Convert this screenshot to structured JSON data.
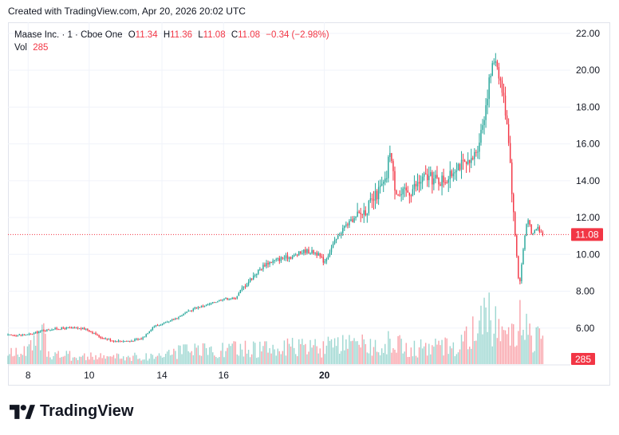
{
  "caption": "Created with TradingView.com, Apr 20, 2026 20:02 UTC",
  "legend": {
    "symbol": "Maase Inc. · 1 · Cboe One",
    "open_label": "O",
    "open": "11.34",
    "high_label": "H",
    "high": "11.36",
    "low_label": "L",
    "low": "11.08",
    "close_label": "C",
    "close": "11.08",
    "change": "−0.34 (−2.98%)",
    "vol_label": "Vol",
    "vol": "285"
  },
  "brand": {
    "name": "TradingView",
    "logo_icon": "tradingview-logo-icon"
  },
  "colors": {
    "up": "#26a69a",
    "down": "#f23645",
    "grid": "#f0f3fa",
    "text": "#131722"
  },
  "chart_data": {
    "type": "candlestick",
    "x_ticks": [
      {
        "label": "8",
        "bold": false,
        "pos": 0.036
      },
      {
        "label": "10",
        "bold": false,
        "pos": 0.145
      },
      {
        "label": "14",
        "bold": false,
        "pos": 0.275
      },
      {
        "label": "16",
        "bold": false,
        "pos": 0.385
      },
      {
        "label": "20",
        "bold": true,
        "pos": 0.565
      }
    ],
    "y_ticks": [
      "22.00",
      "20.00",
      "18.00",
      "16.00",
      "14.00",
      "12.00",
      "10.00",
      "8.00",
      "6.00"
    ],
    "ylim": [
      4.0,
      22.6
    ],
    "last_price": 11.08,
    "last_price_label": "11.08",
    "last_volume_label": "285",
    "grid": true,
    "price_path": [
      [
        0.0,
        5.6
      ],
      [
        0.04,
        5.65
      ],
      [
        0.06,
        5.85
      ],
      [
        0.08,
        5.95
      ],
      [
        0.11,
        6.0
      ],
      [
        0.14,
        5.95
      ],
      [
        0.165,
        5.5
      ],
      [
        0.19,
        5.3
      ],
      [
        0.22,
        5.3
      ],
      [
        0.24,
        5.45
      ],
      [
        0.26,
        6.1
      ],
      [
        0.285,
        6.3
      ],
      [
        0.31,
        6.7
      ],
      [
        0.335,
        7.1
      ],
      [
        0.36,
        7.3
      ],
      [
        0.385,
        7.6
      ],
      [
        0.405,
        7.6
      ],
      [
        0.42,
        8.2
      ],
      [
        0.44,
        8.9
      ],
      [
        0.46,
        9.5
      ],
      [
        0.49,
        9.8
      ],
      [
        0.51,
        9.9
      ],
      [
        0.53,
        10.2
      ],
      [
        0.55,
        10.1
      ],
      [
        0.565,
        9.6
      ],
      [
        0.58,
        10.5
      ],
      [
        0.6,
        11.5
      ],
      [
        0.63,
        12.2
      ],
      [
        0.65,
        12.8
      ],
      [
        0.665,
        13.6
      ],
      [
        0.675,
        13.9
      ],
      [
        0.682,
        15.8
      ],
      [
        0.69,
        13.8
      ],
      [
        0.7,
        13.2
      ],
      [
        0.72,
        13.5
      ],
      [
        0.745,
        14.2
      ],
      [
        0.77,
        14.0
      ],
      [
        0.79,
        14.2
      ],
      [
        0.8,
        14.9
      ],
      [
        0.825,
        14.8
      ],
      [
        0.84,
        16.0
      ],
      [
        0.85,
        17.5
      ],
      [
        0.86,
        19.5
      ],
      [
        0.87,
        20.8
      ],
      [
        0.877,
        19.8
      ],
      [
        0.885,
        18.5
      ],
      [
        0.893,
        16.8
      ],
      [
        0.898,
        14.5
      ],
      [
        0.903,
        12.0
      ],
      [
        0.908,
        10.2
      ],
      [
        0.913,
        8.1
      ],
      [
        0.918,
        9.7
      ],
      [
        0.923,
        11.0
      ],
      [
        0.928,
        12.1
      ],
      [
        0.935,
        11.0
      ],
      [
        0.945,
        11.5
      ],
      [
        0.955,
        11.08
      ]
    ],
    "volume_profile": [
      [
        0.0,
        0.2
      ],
      [
        0.04,
        0.3
      ],
      [
        0.06,
        0.6
      ],
      [
        0.08,
        0.2
      ],
      [
        0.14,
        0.15
      ],
      [
        0.25,
        0.15
      ],
      [
        0.3,
        0.25
      ],
      [
        0.4,
        0.3
      ],
      [
        0.56,
        0.35
      ],
      [
        0.66,
        0.4
      ],
      [
        0.69,
        0.45
      ],
      [
        0.72,
        0.3
      ],
      [
        0.8,
        0.4
      ],
      [
        0.84,
        0.75
      ],
      [
        0.86,
        0.95
      ],
      [
        0.88,
        1.0
      ],
      [
        0.9,
        0.7
      ],
      [
        0.915,
        0.9
      ],
      [
        0.935,
        0.6
      ],
      [
        0.955,
        0.4
      ]
    ]
  }
}
